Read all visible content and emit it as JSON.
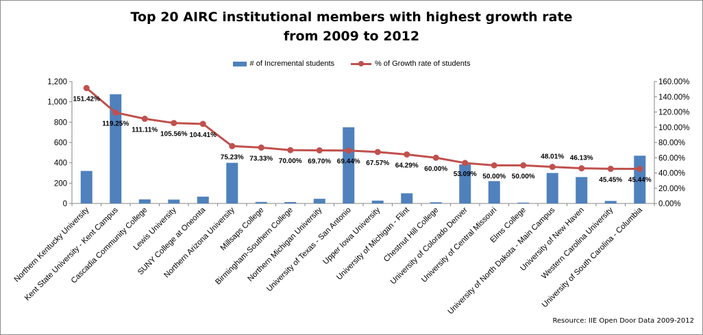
{
  "chart_data": {
    "type": "bar+line",
    "title_lines": [
      "Top 20 AIRC institutional members with highest growth rate",
      "from 2009 to 2012"
    ],
    "categories": [
      "Northern Kentucky University",
      "Kent State University - Kent Campus",
      "Cascadia Community College",
      "Lewis University",
      "SUNY College at Oneonta",
      "Northern Arizona University",
      "Millsaps College",
      "Birmingham-Southern College",
      "Northern Michigan University",
      "University of Texas - San Antonio",
      "Upper Iowa University",
      "University of Michigan - Flint",
      "Chestnut Hill College",
      "University of Colorado Denver",
      "University of Central Missouri",
      "Elms College",
      "University of North Dakota - Main Campus",
      "University of New Haven",
      "Western Carolina University",
      "University of South Carolina - Columbia"
    ],
    "series": [
      {
        "name": "# of Incremental students",
        "type": "bar",
        "axis": "left",
        "color": "#4f81bd",
        "values": [
          320,
          1075,
          40,
          38,
          67,
          400,
          15,
          14,
          46,
          750,
          28,
          100,
          12,
          385,
          220,
          8,
          300,
          260,
          25,
          470
        ]
      },
      {
        "name": "% of Growth rate of students",
        "type": "line",
        "axis": "right",
        "color": "#c0504d",
        "values": [
          151.42,
          119.25,
          111.11,
          105.56,
          104.41,
          75.23,
          73.33,
          70.0,
          69.7,
          69.44,
          67.57,
          64.29,
          60.0,
          53.09,
          50.0,
          50.0,
          48.01,
          46.13,
          45.45,
          45.44
        ],
        "labels": [
          "151.42%",
          "119.25%",
          "111.11%",
          "105.56%",
          "104.41%",
          "75.23%",
          "73.33%",
          "70.00%",
          "69.70%",
          "69.44%",
          "67.57%",
          "64.29%",
          "60.00%",
          "53.09%",
          "50.00%",
          "50.00%",
          "48.01%",
          "46.13%",
          "45.45%",
          "45.44%"
        ]
      }
    ],
    "y_left": {
      "range": [
        0,
        1200
      ],
      "ticks": [
        "0",
        "200",
        "400",
        "600",
        "800",
        "1,000",
        "1,200"
      ]
    },
    "y_right": {
      "range": [
        0,
        160
      ],
      "ticks": [
        "0.00%",
        "20.00%",
        "40.00%",
        "60.00%",
        "80.00%",
        "100.00%",
        "120.00%",
        "140.00%",
        "160.00%"
      ]
    },
    "grid": false,
    "legend_position": "top",
    "source": "Resource: IIE Open Door Data 2009-2012"
  }
}
